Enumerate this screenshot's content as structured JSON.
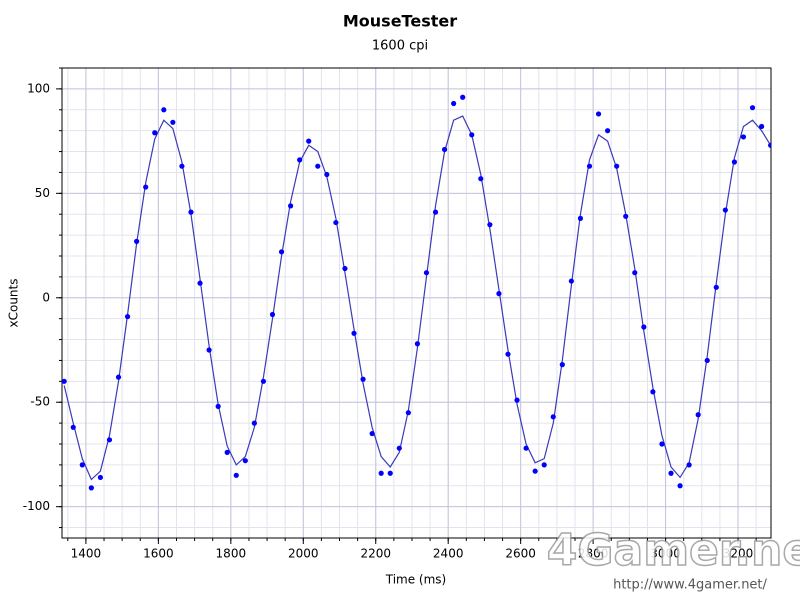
{
  "chart_data": {
    "type": "scatter",
    "title": "MouseTester",
    "subtitle": "1600 cpi",
    "xlabel": "Time (ms)",
    "ylabel": "xCounts",
    "watermark": "4Gamer.net",
    "watermark_url": "http://www.4gamer.net/",
    "xlim": [
      1334,
      3291
    ],
    "ylim": [
      -115,
      110
    ],
    "xticks": [
      1400,
      1600,
      1800,
      2000,
      2200,
      2400,
      2600,
      2800,
      3000,
      3200
    ],
    "yticks": [
      -100,
      -50,
      0,
      50,
      100
    ],
    "xminor": [
      1350,
      1400,
      1450,
      1500,
      1550,
      1600,
      1650,
      1700,
      1750,
      1800,
      1850,
      1900,
      1950,
      2000,
      2050,
      2100,
      2150,
      2200,
      2250,
      2300,
      2350,
      2400,
      2450,
      2500,
      2550,
      2600,
      2650,
      2700,
      2750,
      2800,
      2850,
      2900,
      2950,
      3000,
      3050,
      3100,
      3150,
      3200,
      3250
    ],
    "yminor": [
      -110,
      -100,
      -90,
      -80,
      -70,
      -60,
      -50,
      -40,
      -30,
      -20,
      -10,
      0,
      10,
      20,
      30,
      40,
      50,
      60,
      70,
      80,
      90,
      100,
      110
    ],
    "grid": true,
    "x": [
      1340,
      1365,
      1390,
      1415,
      1440,
      1465,
      1490,
      1515,
      1540,
      1565,
      1590,
      1615,
      1640,
      1665,
      1690,
      1715,
      1740,
      1765,
      1790,
      1815,
      1840,
      1865,
      1890,
      1915,
      1940,
      1965,
      1990,
      2015,
      2040,
      2065,
      2090,
      2115,
      2140,
      2165,
      2190,
      2215,
      2240,
      2265,
      2290,
      2315,
      2340,
      2365,
      2390,
      2415,
      2440,
      2465,
      2490,
      2515,
      2540,
      2565,
      2590,
      2615,
      2640,
      2665,
      2690,
      2715,
      2740,
      2765,
      2790,
      2815,
      2840,
      2865,
      2890,
      2915,
      2940,
      2965,
      2990,
      3015,
      3040,
      3065,
      3090,
      3115,
      3140,
      3165,
      3190,
      3215,
      3240,
      3265,
      3290
    ],
    "series": [
      {
        "style": "line",
        "color": "#3a3ab8",
        "values": [
          -42,
          -60,
          -77,
          -87,
          -83,
          -66,
          -40,
          -8,
          26,
          55,
          76,
          85,
          81,
          65,
          40,
          9,
          -23,
          -51,
          -71,
          -80,
          -76,
          -62,
          -38,
          -10,
          20,
          46,
          65,
          73,
          70,
          58,
          38,
          12,
          -15,
          -41,
          -62,
          -76,
          -81,
          -74,
          -54,
          -24,
          10,
          44,
          70,
          85,
          87,
          78,
          59,
          33,
          4,
          -25,
          -51,
          -70,
          -79,
          -77,
          -60,
          -30,
          6,
          40,
          66,
          78,
          75,
          62,
          40,
          14,
          -16,
          -43,
          -66,
          -81,
          -86,
          -79,
          -58,
          -28,
          7,
          40,
          67,
          82,
          85,
          80,
          73
        ]
      },
      {
        "style": "markers",
        "color": "#0000ff",
        "values": [
          -40,
          -62,
          -80,
          -91,
          -86,
          -68,
          -38,
          -9,
          27,
          53,
          79,
          90,
          84,
          63,
          41,
          7,
          -25,
          -52,
          -74,
          -85,
          -78,
          -60,
          -40,
          -8,
          22,
          44,
          66,
          75,
          63,
          59,
          36,
          14,
          -17,
          -39,
          -65,
          -84,
          -84,
          -72,
          -55,
          -22,
          12,
          41,
          71,
          93,
          96,
          78,
          57,
          35,
          2,
          -27,
          -49,
          -72,
          -83,
          -80,
          -57,
          -32,
          8,
          38,
          63,
          88,
          80,
          63,
          39,
          12,
          -14,
          -45,
          -70,
          -84,
          -90,
          -80,
          -56,
          -30,
          5,
          42,
          65,
          77,
          91,
          82,
          73
        ]
      }
    ]
  }
}
